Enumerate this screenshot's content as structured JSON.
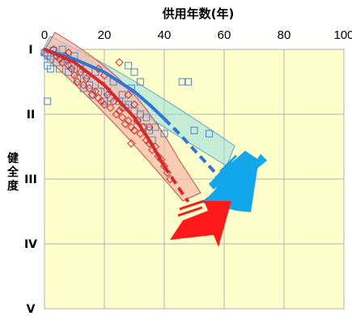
{
  "chart_data": {
    "type": "scatter",
    "title": "",
    "xlabel": "供用年数(年)",
    "ylabel": "健全度",
    "xlim": [
      0,
      100
    ],
    "x_ticks": [
      "0",
      "20",
      "40",
      "60",
      "80",
      "100"
    ],
    "ylim": [
      1,
      5
    ],
    "y_ticks": [
      "I",
      "II",
      "III",
      "IV",
      "V"
    ],
    "x_axis_position": "top",
    "grid": true,
    "legend": "none",
    "colors": {
      "plot_background": "#ffffcc",
      "grid": "#b0b0b0",
      "blue_series": "#2e75d6",
      "blue_band_fill": "#9fe0d8",
      "blue_arrow": "#12a6ea",
      "red_series": "#d42a2a",
      "red_band_fill": "#f6b8aa",
      "red_arrow": "#ff1a1a"
    },
    "series": [
      {
        "marker": "square",
        "color": "#4a86c8",
        "points": [
          [
            0,
            1.05
          ],
          [
            1,
            1.1
          ],
          [
            2,
            1.15
          ],
          [
            1,
            1.25
          ],
          [
            2,
            1.3
          ],
          [
            3,
            1.02
          ],
          [
            4,
            1.2
          ],
          [
            5,
            1.3
          ],
          [
            6,
            1.0
          ],
          [
            7,
            1.15
          ],
          [
            8,
            1.35
          ],
          [
            9,
            1.25
          ],
          [
            10,
            1.1
          ],
          [
            11,
            1.45
          ],
          [
            12,
            1.3
          ],
          [
            13,
            1.6
          ],
          [
            14,
            1.4
          ],
          [
            15,
            1.55
          ],
          [
            16,
            1.7
          ],
          [
            17,
            1.35
          ],
          [
            18,
            1.65
          ],
          [
            19,
            1.55
          ],
          [
            20,
            1.8
          ],
          [
            21,
            1.65
          ],
          [
            22,
            1.75
          ],
          [
            23,
            1.5
          ],
          [
            25,
            1.8
          ],
          [
            26,
            1.7
          ],
          [
            27,
            1.9
          ],
          [
            28,
            1.85
          ],
          [
            29,
            1.6
          ],
          [
            30,
            1.95
          ],
          [
            31,
            2.1
          ],
          [
            32,
            2.0
          ],
          [
            33,
            2.2
          ],
          [
            34,
            2.05
          ],
          [
            35,
            2.25
          ],
          [
            36,
            2.4
          ],
          [
            37,
            2.2
          ],
          [
            40,
            2.3
          ],
          [
            46,
            1.5
          ],
          [
            48,
            1.5
          ],
          [
            50,
            2.25
          ],
          [
            55,
            2.3
          ],
          [
            30,
            1.35
          ],
          [
            28,
            1.25
          ],
          [
            32,
            1.5
          ],
          [
            1,
            1.8
          ]
        ]
      },
      {
        "marker": "diamond",
        "color": "#d03030",
        "points": [
          [
            3,
            1.0
          ],
          [
            4,
            1.1
          ],
          [
            5,
            1.15
          ],
          [
            6,
            1.2
          ],
          [
            7,
            1.1
          ],
          [
            8,
            1.25
          ],
          [
            9,
            1.3
          ],
          [
            10,
            1.4
          ],
          [
            11,
            1.5
          ],
          [
            12,
            1.35
          ],
          [
            13,
            1.55
          ],
          [
            14,
            1.45
          ],
          [
            15,
            1.6
          ],
          [
            16,
            1.7
          ],
          [
            17,
            1.65
          ],
          [
            18,
            1.75
          ],
          [
            19,
            1.8
          ],
          [
            20,
            1.85
          ],
          [
            21,
            1.7
          ],
          [
            22,
            1.9
          ],
          [
            23,
            1.8
          ],
          [
            24,
            2.0
          ],
          [
            25,
            1.95
          ],
          [
            26,
            2.05
          ],
          [
            27,
            2.15
          ],
          [
            28,
            2.1
          ],
          [
            29,
            2.2
          ],
          [
            30,
            2.25
          ],
          [
            31,
            2.1
          ],
          [
            32,
            2.3
          ],
          [
            33,
            2.2
          ],
          [
            34,
            2.4
          ],
          [
            35,
            2.45
          ],
          [
            36,
            2.55
          ],
          [
            37,
            2.5
          ],
          [
            38,
            2.65
          ],
          [
            39,
            2.7
          ],
          [
            40,
            2.8
          ],
          [
            41,
            2.9
          ],
          [
            42,
            3.0
          ],
          [
            29,
            2.45
          ],
          [
            30,
            2.25
          ],
          [
            35,
            2.2
          ],
          [
            25,
            1.2
          ],
          [
            18,
            1.3
          ],
          [
            20,
            1.4
          ],
          [
            8,
            1.05
          ],
          [
            26,
            1.9
          ],
          [
            28,
            1.7
          ],
          [
            30,
            1.85
          ]
        ]
      },
      {
        "kind": "curve",
        "color": "#2e75d6",
        "solid_x": [
          0,
          40
        ],
        "dashed_x": [
          40,
          57
        ],
        "points": [
          [
            0,
            1.0
          ],
          [
            10,
            1.15
          ],
          [
            20,
            1.35
          ],
          [
            30,
            1.65
          ],
          [
            35,
            1.85
          ],
          [
            40,
            2.07
          ],
          [
            45,
            2.3
          ],
          [
            50,
            2.55
          ],
          [
            57,
            2.9
          ]
        ]
      },
      {
        "kind": "curve",
        "color": "#d42a2a",
        "solid_x": [
          0,
          40
        ],
        "dashed_x": [
          40,
          48
        ],
        "points": [
          [
            0,
            1.0
          ],
          [
            10,
            1.2
          ],
          [
            20,
            1.55
          ],
          [
            30,
            2.05
          ],
          [
            35,
            2.4
          ],
          [
            40,
            2.8
          ],
          [
            45,
            3.15
          ],
          [
            48,
            3.35
          ]
        ]
      }
    ]
  }
}
